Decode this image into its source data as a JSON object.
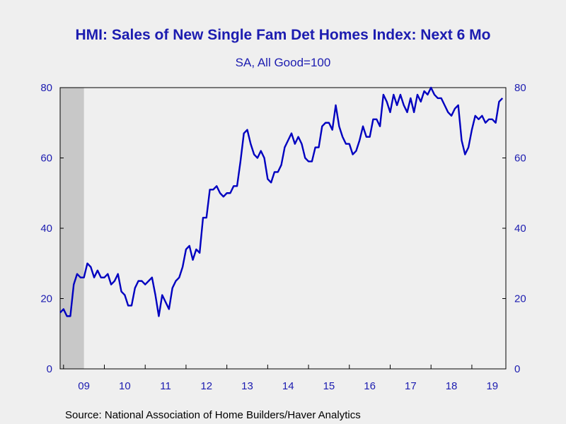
{
  "chart_data": {
    "type": "line",
    "title": "HMI: Sales of New Single Fam Det Homes Index: Next 6 Mo",
    "subtitle": "SA, All Good=100",
    "source": "Source:  National Association of Home Builders/Haver Analytics",
    "ylim": [
      0,
      80
    ],
    "yticks": [
      0,
      20,
      40,
      60,
      80
    ],
    "xlim": [
      2008.917,
      2019.833
    ],
    "xticks": [
      {
        "label": "09",
        "year": 2009
      },
      {
        "label": "10",
        "year": 2010
      },
      {
        "label": "11",
        "year": 2011
      },
      {
        "label": "12",
        "year": 2012
      },
      {
        "label": "13",
        "year": 2013
      },
      {
        "label": "14",
        "year": 2014
      },
      {
        "label": "15",
        "year": 2015
      },
      {
        "label": "16",
        "year": 2016
      },
      {
        "label": "17",
        "year": 2017
      },
      {
        "label": "18",
        "year": 2018
      },
      {
        "label": "19",
        "year": 2019
      }
    ],
    "recession": [
      2008.917,
      2009.5
    ],
    "colors": {
      "line": "#0000c0",
      "recession": "#c8c8c8",
      "text": "#1c1cb0"
    },
    "series": [
      {
        "start": "2008-12",
        "values": [
          16,
          17,
          15,
          15,
          24,
          27,
          26,
          26,
          30,
          29,
          26,
          28,
          26,
          26,
          27,
          24,
          25,
          27,
          22,
          21,
          18,
          18,
          23,
          25,
          25,
          24,
          25,
          26,
          21,
          15,
          21,
          19,
          17,
          23,
          25,
          26,
          29,
          34,
          35,
          31,
          34,
          33,
          43,
          43,
          51,
          51,
          52,
          50,
          49,
          50,
          50,
          52,
          52,
          59,
          67,
          68,
          64,
          61,
          60,
          62,
          60,
          54,
          53,
          56,
          56,
          58,
          63,
          65,
          67,
          64,
          66,
          64,
          60,
          59,
          59,
          63,
          63,
          69,
          70,
          70,
          68,
          75,
          69,
          66,
          64,
          64,
          61,
          62,
          65,
          69,
          66,
          66,
          71,
          71,
          69,
          78,
          76,
          73,
          78,
          75,
          78,
          75,
          73,
          77,
          73,
          78,
          76,
          79,
          78,
          80,
          78,
          77,
          77,
          75,
          73,
          72,
          74,
          75,
          65,
          61,
          63,
          68,
          72,
          71,
          72,
          70,
          71,
          71,
          70,
          76,
          77
        ]
      }
    ]
  }
}
